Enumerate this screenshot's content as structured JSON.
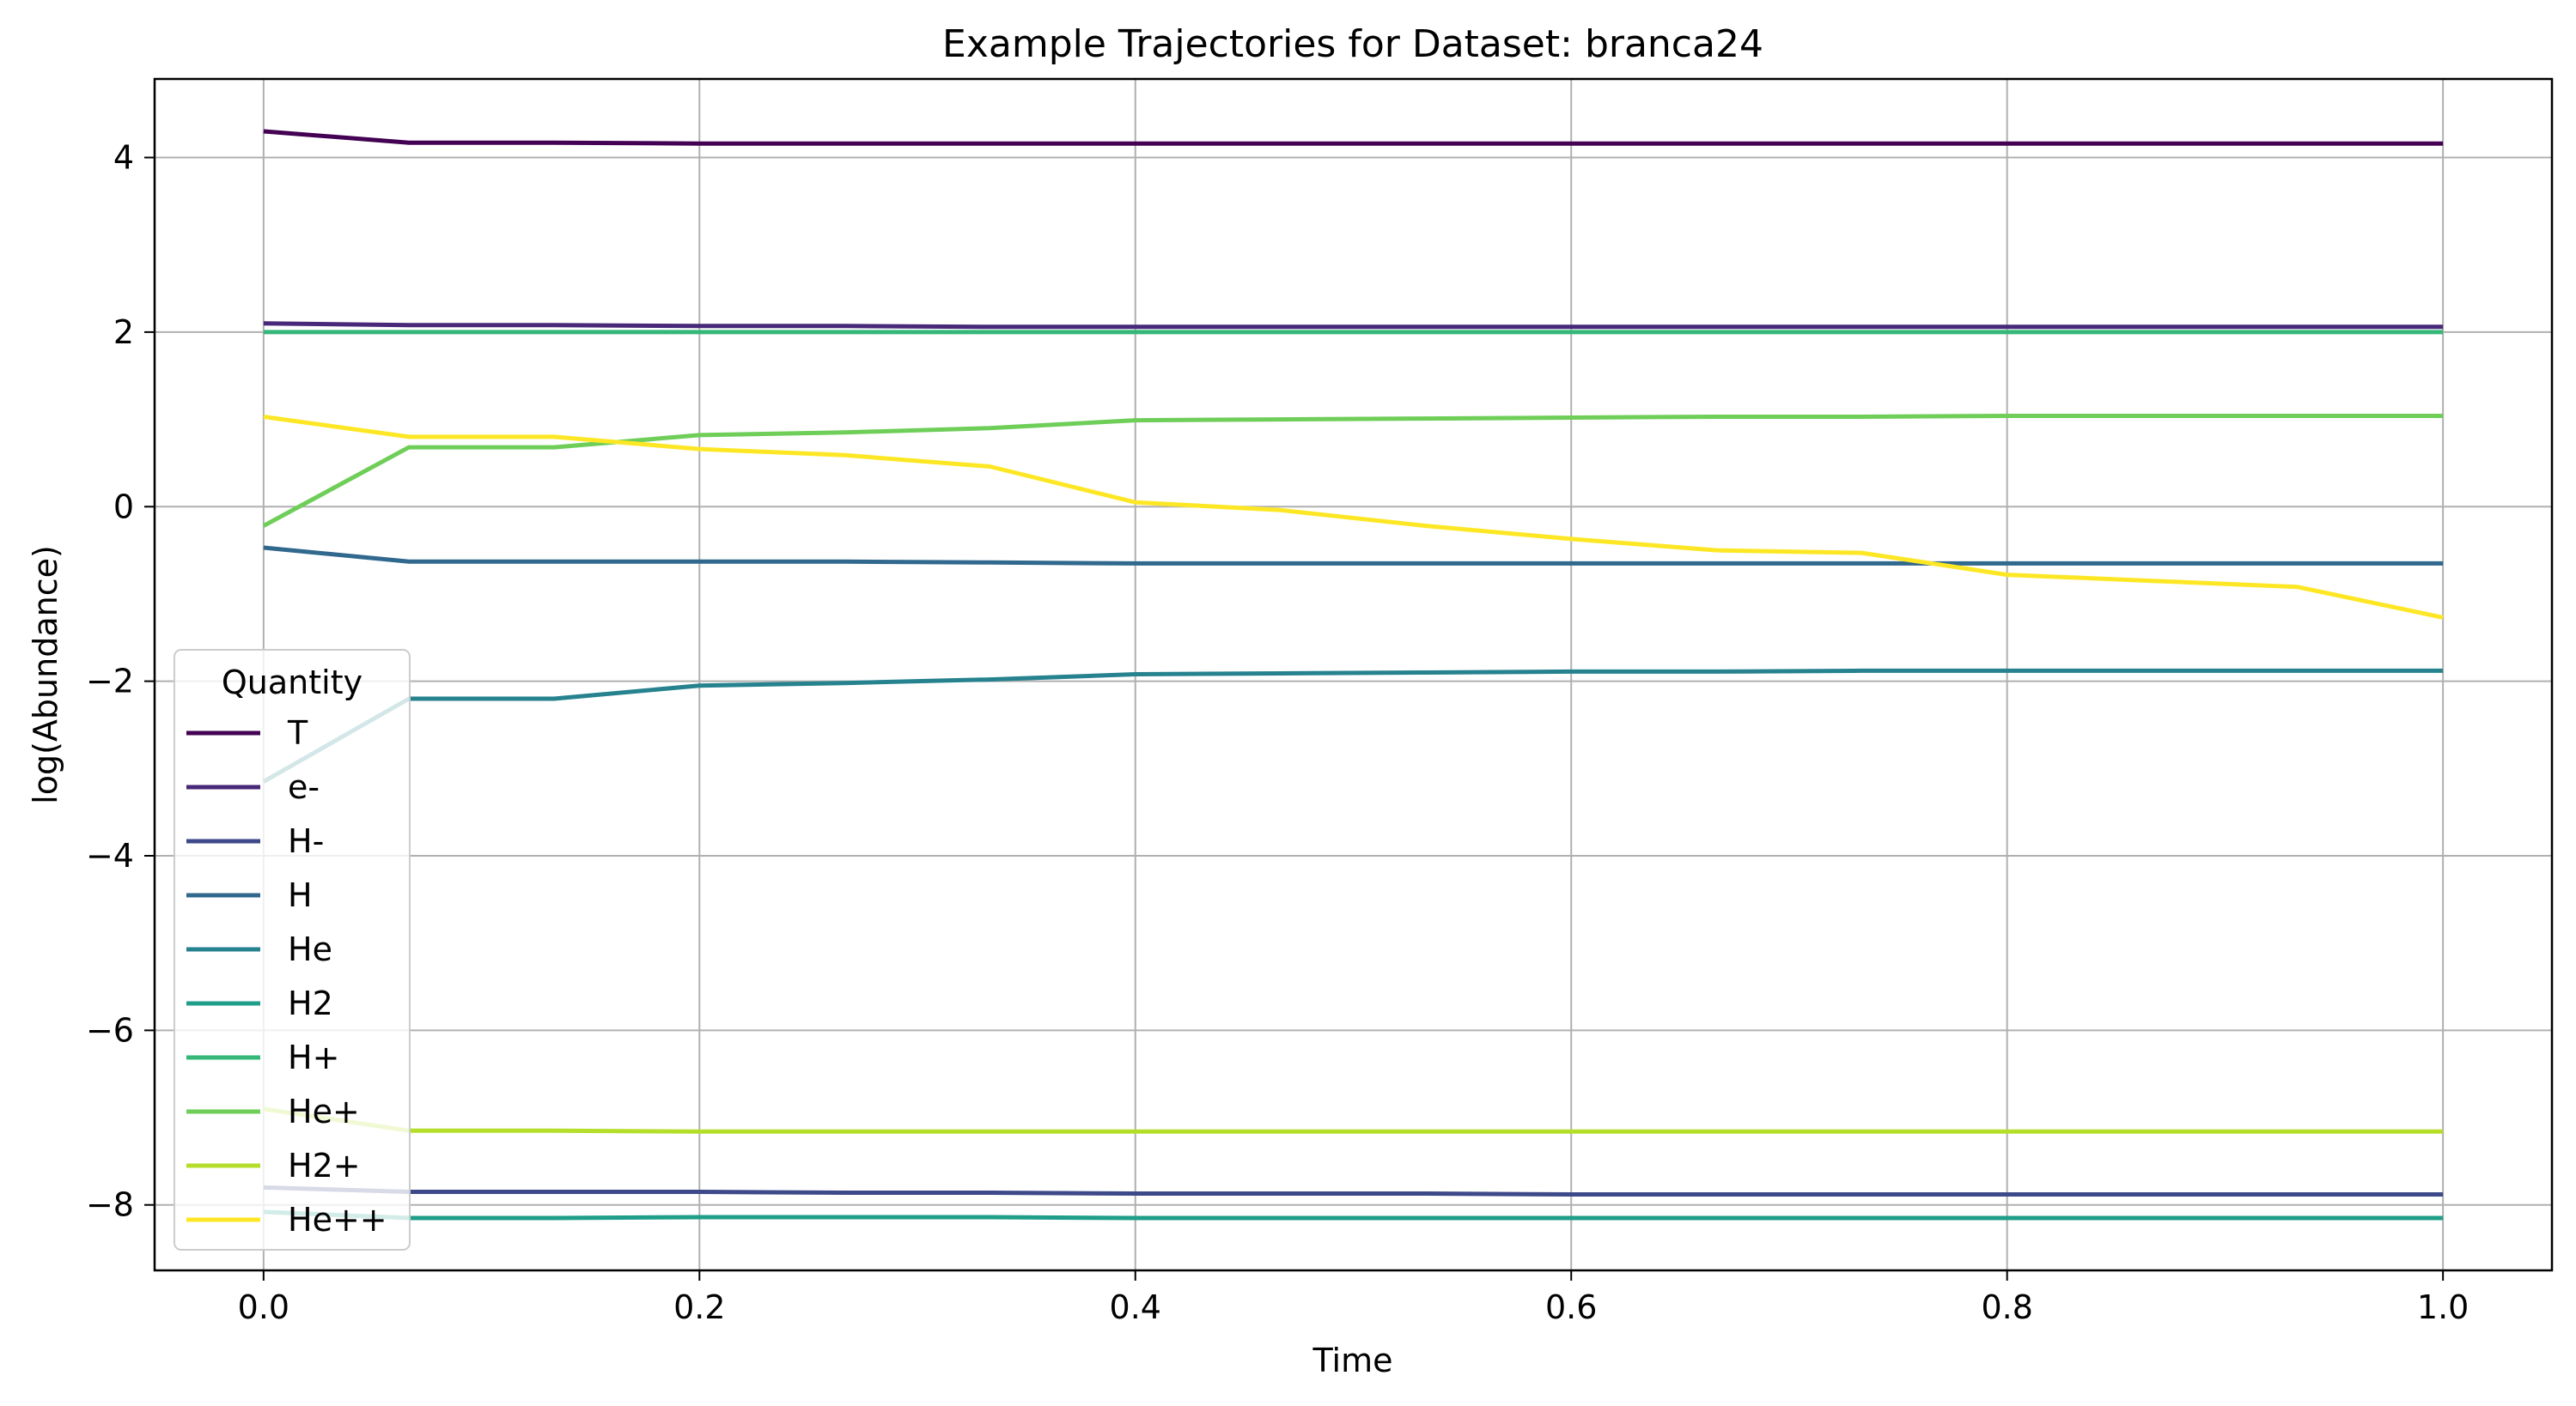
{
  "chart_data": {
    "type": "line",
    "title": "Example Trajectories for Dataset: branca24",
    "xlabel": "Time",
    "ylabel": "log(Abundance)",
    "xlim": [
      -0.05,
      1.05
    ],
    "ylim": [
      -8.75,
      4.9
    ],
    "xticks": [
      0.0,
      0.2,
      0.4,
      0.6,
      0.8,
      1.0
    ],
    "xtick_labels": [
      "0.0",
      "0.2",
      "0.4",
      "0.6",
      "0.8",
      "1.0"
    ],
    "yticks": [
      -8,
      -6,
      -4,
      -2,
      0,
      2,
      4
    ],
    "ytick_labels": [
      "−8",
      "−6",
      "−4",
      "−2",
      "0",
      "2",
      "4"
    ],
    "grid": true,
    "legend": {
      "title": "Quantity",
      "location": "lower-left"
    },
    "x": [
      0.0,
      0.0667,
      0.1333,
      0.2,
      0.2667,
      0.3333,
      0.4,
      0.4667,
      0.5333,
      0.6,
      0.6667,
      0.7333,
      0.8,
      0.8667,
      0.9333,
      1.0
    ],
    "series": [
      {
        "name": "T",
        "color": "#440154",
        "values": [
          4.3,
          4.17,
          4.17,
          4.16,
          4.16,
          4.16,
          4.16,
          4.16,
          4.16,
          4.16,
          4.16,
          4.16,
          4.16,
          4.16,
          4.16,
          4.16
        ]
      },
      {
        "name": "e-",
        "color": "#482878",
        "values": [
          2.1,
          2.08,
          2.08,
          2.07,
          2.07,
          2.06,
          2.06,
          2.06,
          2.06,
          2.06,
          2.06,
          2.06,
          2.06,
          2.06,
          2.06,
          2.06
        ]
      },
      {
        "name": "H-",
        "color": "#3e4989",
        "values": [
          -7.8,
          -7.85,
          -7.85,
          -7.85,
          -7.86,
          -7.86,
          -7.87,
          -7.87,
          -7.87,
          -7.88,
          -7.88,
          -7.88,
          -7.88,
          -7.88,
          -7.88,
          -7.88
        ]
      },
      {
        "name": "H",
        "color": "#31688e",
        "values": [
          -0.47,
          -0.63,
          -0.63,
          -0.63,
          -0.63,
          -0.64,
          -0.65,
          -0.65,
          -0.65,
          -0.65,
          -0.65,
          -0.65,
          -0.65,
          -0.65,
          -0.65,
          -0.65
        ]
      },
      {
        "name": "He",
        "color": "#26828e",
        "values": [
          -3.15,
          -2.2,
          -2.2,
          -2.05,
          -2.02,
          -1.98,
          -1.92,
          -1.91,
          -1.9,
          -1.89,
          -1.89,
          -1.88,
          -1.88,
          -1.88,
          -1.88,
          -1.88
        ]
      },
      {
        "name": "H2",
        "color": "#1f9e89",
        "values": [
          -8.08,
          -8.15,
          -8.15,
          -8.14,
          -8.14,
          -8.14,
          -8.15,
          -8.15,
          -8.15,
          -8.15,
          -8.15,
          -8.15,
          -8.15,
          -8.15,
          -8.15,
          -8.15
        ]
      },
      {
        "name": "H+",
        "color": "#35b779",
        "values": [
          2.0,
          2.0,
          2.0,
          2.0,
          2.0,
          2.0,
          2.0,
          2.0,
          2.0,
          2.0,
          2.0,
          2.0,
          2.0,
          2.0,
          2.0,
          2.0
        ]
      },
      {
        "name": "He+",
        "color": "#6ece58",
        "values": [
          -0.22,
          0.68,
          0.68,
          0.82,
          0.85,
          0.9,
          0.99,
          1.0,
          1.01,
          1.02,
          1.03,
          1.03,
          1.04,
          1.04,
          1.04,
          1.04
        ]
      },
      {
        "name": "H2+",
        "color": "#b5de2b",
        "values": [
          -6.9,
          -7.15,
          -7.15,
          -7.16,
          -7.16,
          -7.16,
          -7.16,
          -7.16,
          -7.16,
          -7.16,
          -7.16,
          -7.16,
          -7.16,
          -7.16,
          -7.16,
          -7.16
        ]
      },
      {
        "name": "He++",
        "color": "#fde725",
        "values": [
          1.03,
          0.8,
          0.8,
          0.66,
          0.59,
          0.46,
          0.05,
          -0.04,
          -0.22,
          -0.37,
          -0.5,
          -0.53,
          -0.78,
          -0.85,
          -0.92,
          -1.27
        ]
      }
    ]
  }
}
